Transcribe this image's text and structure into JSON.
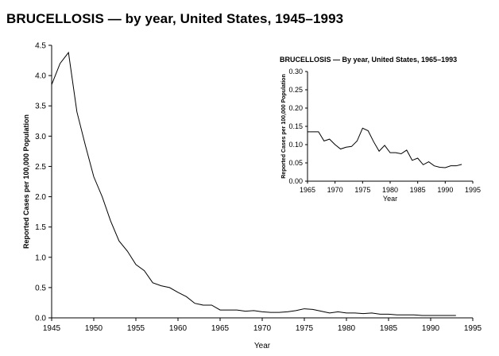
{
  "page": {
    "title": "BRUCELLOSIS — by year, United States, 1945–1993"
  },
  "chart_data": [
    {
      "type": "line",
      "title": "BRUCELLOSIS — by year, United States, 1945–1993",
      "xlabel": "Year",
      "ylabel": "Reported Cases per 100,000 Population",
      "xlim": [
        1945,
        1995
      ],
      "ylim": [
        0,
        4.5
      ],
      "x_ticks": [
        "1945",
        "1950",
        "1955",
        "1960",
        "1965",
        "1970",
        "1975",
        "1980",
        "1985",
        "1990",
        "1995"
      ],
      "y_ticks": [
        "0.0",
        "0.5",
        "1.0",
        "1.5",
        "2.0",
        "2.5",
        "3.0",
        "3.5",
        "4.0",
        "4.5"
      ],
      "grid": false,
      "x": [
        1945,
        1946,
        1947,
        1948,
        1949,
        1950,
        1951,
        1952,
        1953,
        1954,
        1955,
        1956,
        1957,
        1958,
        1959,
        1960,
        1961,
        1962,
        1963,
        1964,
        1965,
        1966,
        1967,
        1968,
        1969,
        1970,
        1971,
        1972,
        1973,
        1974,
        1975,
        1976,
        1977,
        1978,
        1979,
        1980,
        1981,
        1982,
        1983,
        1984,
        1985,
        1986,
        1987,
        1988,
        1989,
        1990,
        1991,
        1992,
        1993
      ],
      "series": [
        {
          "values": [
            3.85,
            4.2,
            4.38,
            3.4,
            2.85,
            2.33,
            2.0,
            1.6,
            1.27,
            1.1,
            0.88,
            0.78,
            0.58,
            0.53,
            0.5,
            0.42,
            0.35,
            0.24,
            0.21,
            0.21,
            0.13,
            0.13,
            0.13,
            0.11,
            0.12,
            0.1,
            0.09,
            0.09,
            0.1,
            0.12,
            0.15,
            0.14,
            0.11,
            0.08,
            0.1,
            0.08,
            0.08,
            0.07,
            0.08,
            0.06,
            0.06,
            0.05,
            0.05,
            0.05,
            0.04,
            0.04,
            0.04,
            0.04,
            0.04
          ]
        }
      ]
    },
    {
      "type": "line",
      "title": "BRUCELLOSIS — By year, United States, 1965–1993",
      "xlabel": "Year",
      "ylabel": "Reported Cases per 100,000 Population",
      "xlim": [
        1965,
        1995
      ],
      "ylim": [
        0,
        0.3
      ],
      "x_ticks": [
        "1965",
        "1970",
        "1975",
        "1980",
        "1985",
        "1990",
        "1995"
      ],
      "y_ticks": [
        "0.00",
        "0.05",
        "0.10",
        "0.15",
        "0.20",
        "0.25",
        "0.30"
      ],
      "grid": false,
      "x": [
        1965,
        1966,
        1967,
        1968,
        1969,
        1970,
        1971,
        1972,
        1973,
        1974,
        1975,
        1976,
        1977,
        1978,
        1979,
        1980,
        1981,
        1982,
        1983,
        1984,
        1985,
        1986,
        1987,
        1988,
        1989,
        1990,
        1991,
        1992,
        1993
      ],
      "series": [
        {
          "values": [
            0.135,
            0.135,
            0.135,
            0.11,
            0.115,
            0.1,
            0.088,
            0.093,
            0.095,
            0.11,
            0.145,
            0.138,
            0.108,
            0.082,
            0.098,
            0.078,
            0.078,
            0.075,
            0.085,
            0.057,
            0.063,
            0.045,
            0.053,
            0.042,
            0.038,
            0.037,
            0.042,
            0.042,
            0.046
          ]
        }
      ]
    }
  ]
}
